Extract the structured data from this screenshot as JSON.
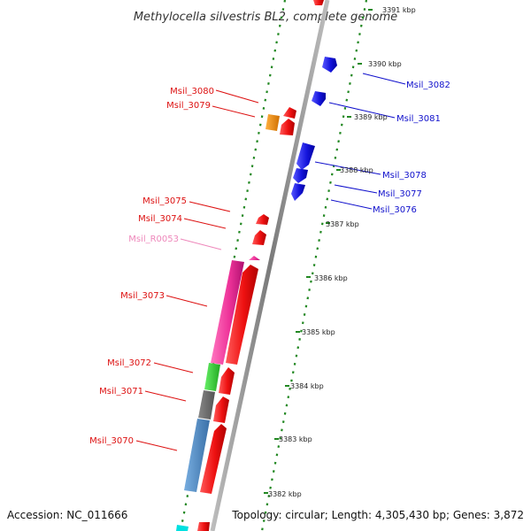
{
  "title": "Methylocella silvestris BL2, complete genome",
  "footer": {
    "accession": "Accession: NC_011666",
    "summary": "Topology: circular; Length: 4,305,430 bp; Genes: 3,872"
  },
  "ticks": [
    {
      "label": "3391 kbp",
      "kbp": 3391
    },
    {
      "label": "3390 kbp",
      "kbp": 3390
    },
    {
      "label": "3389 kbp",
      "kbp": 3389
    },
    {
      "label": "3388 kbp",
      "kbp": 3388
    },
    {
      "label": "3387 kbp",
      "kbp": 3387
    },
    {
      "label": "3386 kbp",
      "kbp": 3386
    },
    {
      "label": "3385 kbp",
      "kbp": 3385
    },
    {
      "label": "3384 kbp",
      "kbp": 3384
    },
    {
      "label": "3383 kbp",
      "kbp": 3383
    },
    {
      "label": "3382 kbp",
      "kbp": 3382
    }
  ],
  "gene_labels": [
    {
      "label": "Msil_3082",
      "side": "right",
      "color": "#1010cc"
    },
    {
      "label": "Msil_3081",
      "side": "right",
      "color": "#1010cc"
    },
    {
      "label": "Msil_3078",
      "side": "right",
      "color": "#1010cc"
    },
    {
      "label": "Msil_3077",
      "side": "right",
      "color": "#1010cc"
    },
    {
      "label": "Msil_3076",
      "side": "right",
      "color": "#1010cc"
    },
    {
      "label": "Msil_3080",
      "side": "left",
      "color": "#dd1111"
    },
    {
      "label": "Msil_3079",
      "side": "left",
      "color": "#dd1111"
    },
    {
      "label": "Msil_3075",
      "side": "left",
      "color": "#dd1111"
    },
    {
      "label": "Msil_3074",
      "side": "left",
      "color": "#dd1111"
    },
    {
      "label": "Msil_R0053",
      "side": "left",
      "color": "#ee88bb"
    },
    {
      "label": "Msil_3073",
      "side": "left",
      "color": "#dd1111"
    },
    {
      "label": "Msil_3072",
      "side": "left",
      "color": "#dd1111"
    },
    {
      "label": "Msil_3071",
      "side": "left",
      "color": "#dd1111"
    },
    {
      "label": "Msil_3070",
      "side": "left",
      "color": "#dd1111"
    }
  ],
  "colors": {
    "backbone": "#8a8a8a",
    "ring_dots": "#228822",
    "forward_cds": "#ee1111",
    "reverse_cds": "#1515dd",
    "rna": "#ee3399",
    "feature_orange": "#ee8811",
    "feature_green": "#33cc33",
    "feature_gray": "#666666",
    "feature_steelblue": "#4a86c0",
    "feature_cyan": "#00e0e0"
  }
}
